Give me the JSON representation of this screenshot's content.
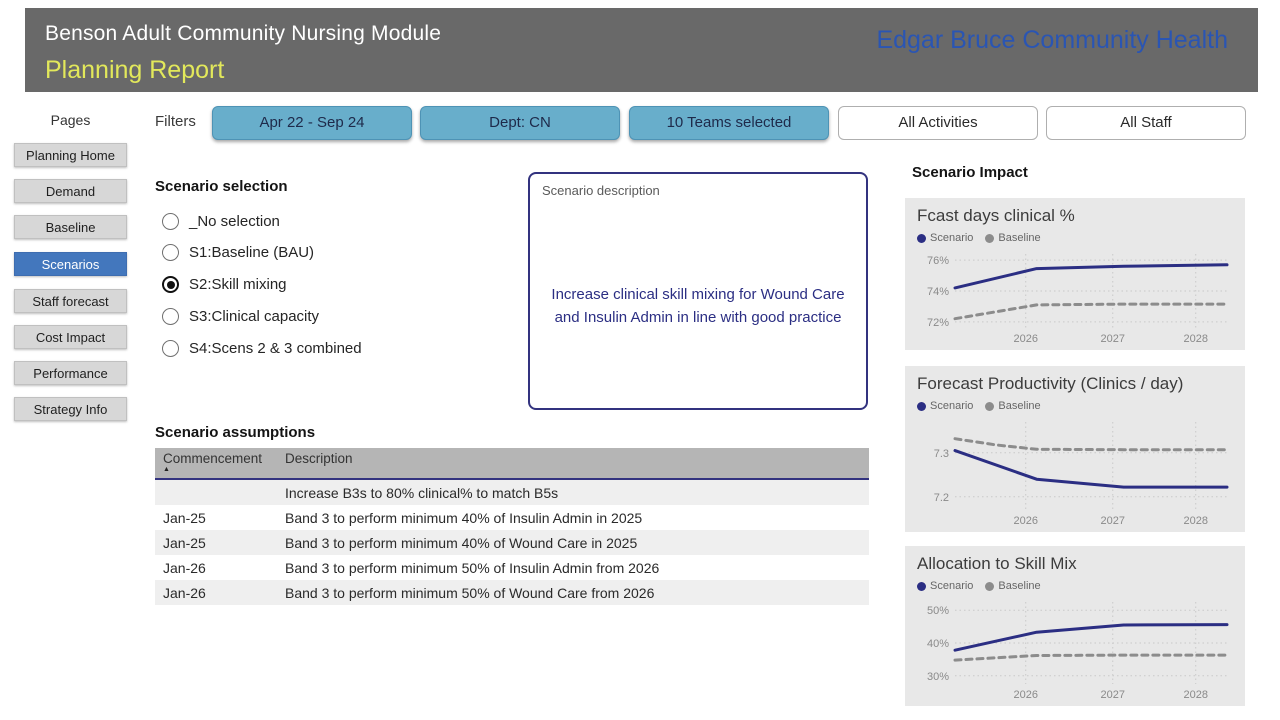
{
  "colors": {
    "header_bg": "#696969",
    "subtitle_yellow": "#E2E85B",
    "org_blue": "#2A55B3",
    "sidebar_active_blue": "#4377BD",
    "filter_teal": "#68AECB",
    "scenario_navy": "#2B2E83",
    "baseline_gray": "#8C8C8C",
    "panel_gray": "#E8E8E8"
  },
  "header": {
    "title": "Benson Adult Community Nursing Module",
    "subtitle": "Planning Report",
    "org": "Edgar Bruce Community Health"
  },
  "sidebar": {
    "heading": "Pages",
    "items": [
      {
        "label": "Planning Home",
        "active": false
      },
      {
        "label": "Demand",
        "active": false
      },
      {
        "label": "Baseline",
        "active": false
      },
      {
        "label": "Scenarios",
        "active": true
      },
      {
        "label": "Staff forecast",
        "active": false
      },
      {
        "label": "Cost Impact",
        "active": false
      },
      {
        "label": "Performance",
        "active": false
      },
      {
        "label": "Strategy Info",
        "active": false
      }
    ]
  },
  "filters": {
    "label": "Filters",
    "buttons": [
      {
        "label": "Apr 22 - Sep 24",
        "style": "teal"
      },
      {
        "label": "Dept: CN",
        "style": "teal"
      },
      {
        "label": "10 Teams selected",
        "style": "teal"
      },
      {
        "label": "All Activities",
        "style": "white"
      },
      {
        "label": "All Staff",
        "style": "white"
      }
    ]
  },
  "scenario_selection": {
    "title": "Scenario selection",
    "options": [
      {
        "label": "_No selection",
        "selected": false
      },
      {
        "label": "S1:Baseline (BAU)",
        "selected": false
      },
      {
        "label": "S2:Skill mixing",
        "selected": true
      },
      {
        "label": "S3:Clinical capacity",
        "selected": false
      },
      {
        "label": "S4:Scens 2 & 3 combined",
        "selected": false
      }
    ]
  },
  "scenario_description": {
    "label": "Scenario description",
    "text": "Increase clinical skill mixing for Wound Care and Insulin Admin in line with good practice"
  },
  "scenario_assumptions": {
    "title": "Scenario assumptions",
    "columns": [
      {
        "label": "Commencement",
        "sort_icon": "▲"
      },
      {
        "label": "Description",
        "sort_icon": ""
      }
    ],
    "rows": [
      [
        "",
        "Increase B3s to 80% clinical% to match B5s"
      ],
      [
        "Jan-25",
        "Band 3 to perform minimum 40% of Insulin Admin in 2025"
      ],
      [
        "Jan-25",
        "Band 3 to perform minimum 40% of Wound Care in 2025"
      ],
      [
        "Jan-26",
        "Band 3 to perform minimum 50% of Insulin Admin from 2026"
      ],
      [
        "Jan-26",
        "Band 3 to perform minimum 50% of Wound Care from 2026"
      ]
    ]
  },
  "scenario_impact": {
    "title": "Scenario Impact"
  },
  "chart_data": [
    {
      "type": "line",
      "title": "Fcast days clinical %",
      "legend_position": "top-left",
      "grid": true,
      "ylim": [
        71.6,
        76.4
      ],
      "y_ticks": [
        {
          "value": 76,
          "label": "76%"
        },
        {
          "value": 74,
          "label": "74%"
        },
        {
          "value": 72,
          "label": "72%"
        }
      ],
      "x_ticks": [
        {
          "pos": 0.26,
          "label": "2026"
        },
        {
          "pos": 0.58,
          "label": "2027"
        },
        {
          "pos": 0.885,
          "label": "2028"
        }
      ],
      "series": [
        {
          "name": "Scenario",
          "style": "solid",
          "color": "#2B2E83",
          "x": [
            0,
            0.3,
            0.62,
            1
          ],
          "values": [
            74.2,
            75.45,
            75.6,
            75.7
          ]
        },
        {
          "name": "Baseline",
          "style": "dashed",
          "color": "#8C8C8C",
          "x": [
            0,
            0.3,
            0.62,
            1
          ],
          "values": [
            72.2,
            73.1,
            73.15,
            73.15
          ]
        }
      ]
    },
    {
      "type": "line",
      "title": "Forecast Productivity (Clinics / day)",
      "legend_position": "top-left",
      "grid": true,
      "ylim": [
        7.17,
        7.37
      ],
      "y_ticks": [
        {
          "value": 7.3,
          "label": "7.3"
        },
        {
          "value": 7.2,
          "label": "7.2"
        }
      ],
      "x_ticks": [
        {
          "pos": 0.26,
          "label": "2026"
        },
        {
          "pos": 0.58,
          "label": "2027"
        },
        {
          "pos": 0.885,
          "label": "2028"
        }
      ],
      "series": [
        {
          "name": "Scenario",
          "style": "solid",
          "color": "#2B2E83",
          "x": [
            0,
            0.3,
            0.62,
            1
          ],
          "values": [
            7.305,
            7.24,
            7.222,
            7.222
          ]
        },
        {
          "name": "Baseline",
          "style": "dashed",
          "color": "#8C8C8C",
          "x": [
            0,
            0.15,
            0.3,
            0.62,
            1
          ],
          "values": [
            7.332,
            7.318,
            7.308,
            7.307,
            7.307
          ]
        }
      ]
    },
    {
      "type": "line",
      "title": "Allocation to Skill Mix",
      "legend_position": "top-left",
      "grid": true,
      "ylim": [
        27.5,
        52.5
      ],
      "y_ticks": [
        {
          "value": 50,
          "label": "50%"
        },
        {
          "value": 40,
          "label": "40%"
        },
        {
          "value": 30,
          "label": "30%"
        }
      ],
      "x_ticks": [
        {
          "pos": 0.26,
          "label": "2026"
        },
        {
          "pos": 0.58,
          "label": "2027"
        },
        {
          "pos": 0.885,
          "label": "2028"
        }
      ],
      "series": [
        {
          "name": "Scenario",
          "style": "solid",
          "color": "#2B2E83",
          "x": [
            0,
            0.3,
            0.62,
            1
          ],
          "values": [
            37.8,
            43.3,
            45.5,
            45.6
          ]
        },
        {
          "name": "Baseline",
          "style": "dashed",
          "color": "#8C8C8C",
          "x": [
            0,
            0.3,
            0.62,
            1
          ],
          "values": [
            34.8,
            36.2,
            36.3,
            36.3
          ]
        }
      ]
    }
  ]
}
